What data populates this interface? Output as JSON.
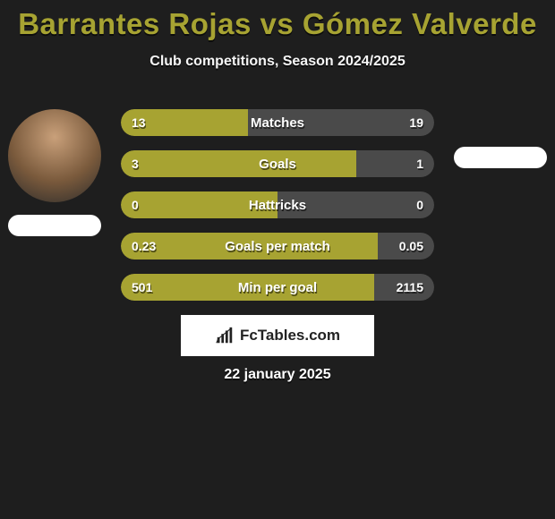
{
  "title": {
    "text": "Barrantes Rojas vs Gómez Valverde",
    "color": "#a7a332",
    "fontsize": 33
  },
  "subtitle": "Club competitions, Season 2024/2025",
  "date": "22 january 2025",
  "branding": "FcTables.com",
  "colors": {
    "left": "#a7a332",
    "right": "#4a4a4a",
    "background": "#1e1e1e",
    "pill": "#ffffff"
  },
  "players": {
    "left": {
      "has_photo": true
    },
    "right": {
      "has_photo": false
    }
  },
  "stats": [
    {
      "label": "Matches",
      "left_val": "13",
      "right_val": "19",
      "left_pct": 40.6,
      "right_pct": 59.4
    },
    {
      "label": "Goals",
      "left_val": "3",
      "right_val": "1",
      "left_pct": 75.0,
      "right_pct": 25.0
    },
    {
      "label": "Hattricks",
      "left_val": "0",
      "right_val": "0",
      "left_pct": 50.0,
      "right_pct": 50.0
    },
    {
      "label": "Goals per match",
      "left_val": "0.23",
      "right_val": "0.05",
      "left_pct": 82.1,
      "right_pct": 17.9
    },
    {
      "label": "Min per goal",
      "left_val": "501",
      "right_val": "2115",
      "left_pct": 80.8,
      "right_pct": 19.2
    }
  ]
}
